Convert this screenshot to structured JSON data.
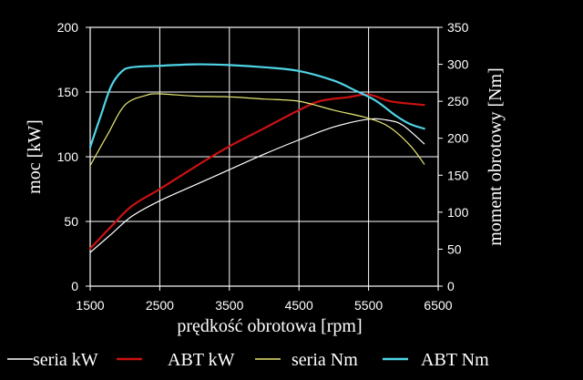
{
  "chart_data": {
    "type": "line",
    "xlabel": "prędkość obrotowa [rpm]",
    "ylabel": "moc [kW]",
    "y2label": "moment obrotowy [Nm]",
    "xlim": [
      1500,
      6500
    ],
    "xticks": [
      1500,
      2500,
      3500,
      4500,
      5500,
      6500
    ],
    "ylim": [
      0,
      200
    ],
    "yticks": [
      0,
      50,
      100,
      150,
      200
    ],
    "y2lim": [
      0,
      350
    ],
    "y2ticks": [
      0,
      50,
      100,
      150,
      200,
      250,
      300,
      350
    ],
    "grid": true,
    "legend_position": "bottom",
    "series": [
      {
        "name": "seria kW",
        "axis": "left",
        "color": "#ffffff",
        "x": [
          1500,
          1800,
          2100,
          2500,
          3000,
          3500,
          4000,
          4500,
          5000,
          5500,
          5800,
          6000,
          6300
        ],
        "y": [
          26,
          40,
          54,
          66,
          78,
          90,
          102,
          113,
          123,
          129,
          128,
          124,
          110
        ]
      },
      {
        "name": "ABT kW",
        "axis": "left",
        "color": "#cc1111",
        "x": [
          1500,
          1800,
          2100,
          2500,
          3000,
          3500,
          4000,
          4500,
          4800,
          5200,
          5500,
          5800,
          6100,
          6300
        ],
        "y": [
          29,
          46,
          62,
          75,
          92,
          108,
          122,
          136,
          143,
          146,
          148,
          143,
          141,
          140
        ]
      },
      {
        "name": "seria Nm",
        "axis": "right",
        "color": "#e6e676",
        "x": [
          1500,
          1750,
          2000,
          2300,
          2500,
          3000,
          3500,
          4000,
          4500,
          5000,
          5500,
          5800,
          6100,
          6300
        ],
        "y": [
          163,
          205,
          245,
          258,
          260,
          257,
          256,
          253,
          250,
          238,
          227,
          215,
          190,
          165
        ]
      },
      {
        "name": "ABT Nm",
        "axis": "right",
        "color": "#4fd4e6",
        "x": [
          1500,
          1650,
          1800,
          1950,
          2100,
          2500,
          3000,
          3500,
          4000,
          4500,
          5000,
          5300,
          5600,
          5900,
          6100,
          6300
        ],
        "y": [
          188,
          230,
          270,
          290,
          296,
          298,
          300,
          299,
          296,
          291,
          278,
          265,
          251,
          230,
          219,
          213
        ]
      }
    ]
  }
}
